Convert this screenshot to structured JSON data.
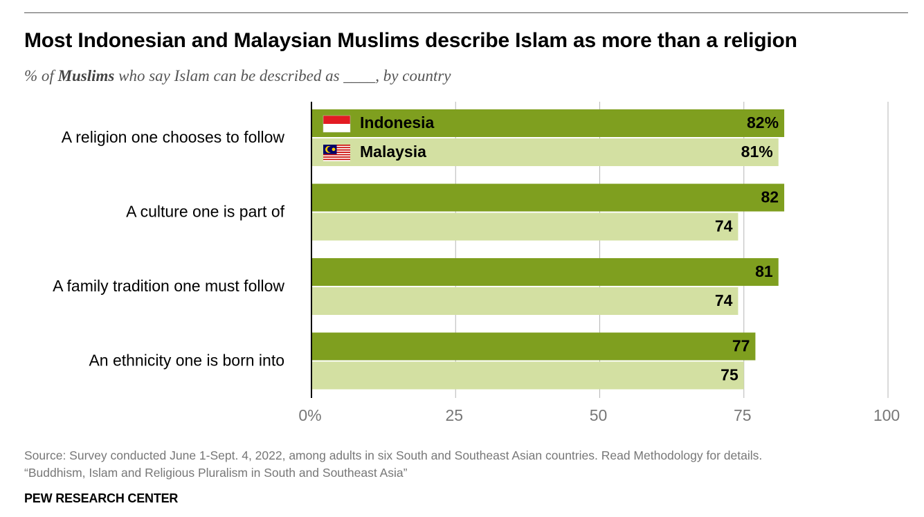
{
  "title": "Most Indonesian and Malaysian Muslims describe Islam as more than a religion",
  "subtitle": {
    "prefix": "% of ",
    "bold": "Muslims",
    "suffix": " who say Islam can be described as ____, by country"
  },
  "chart_data": {
    "type": "bar",
    "orientation": "horizontal",
    "categories": [
      "A religion one chooses to follow",
      "A culture one is part of",
      "A family tradition one must follow",
      "An ethnicity one is born into"
    ],
    "series": [
      {
        "name": "Indonesia",
        "values": [
          82,
          82,
          81,
          77
        ],
        "color": "#7f9f1f",
        "flag": "indonesia-flag-icon"
      },
      {
        "name": "Malaysia",
        "values": [
          81,
          74,
          74,
          75
        ],
        "color": "#d3e0a2",
        "flag": "malaysia-flag-icon"
      }
    ],
    "data_labels": [
      [
        "82%",
        "82",
        "81",
        "77"
      ],
      [
        "81%",
        "74",
        "74",
        "75"
      ]
    ],
    "xlim": [
      0,
      100
    ],
    "xticks": [
      0,
      25,
      50,
      75,
      100
    ],
    "xtick_labels": [
      "0%",
      "25",
      "50",
      "75",
      "100"
    ],
    "grid": true,
    "legend": "inside first bar pair"
  },
  "footer": {
    "source": "Source: Survey conducted June 1-Sept. 4, 2022, among adults in six South and Southeast Asian countries. Read Methodology for details.",
    "report": "“Buddhism, Islam and Religious Pluralism in South and Southeast Asia”"
  },
  "organization": "PEW RESEARCH CENTER"
}
